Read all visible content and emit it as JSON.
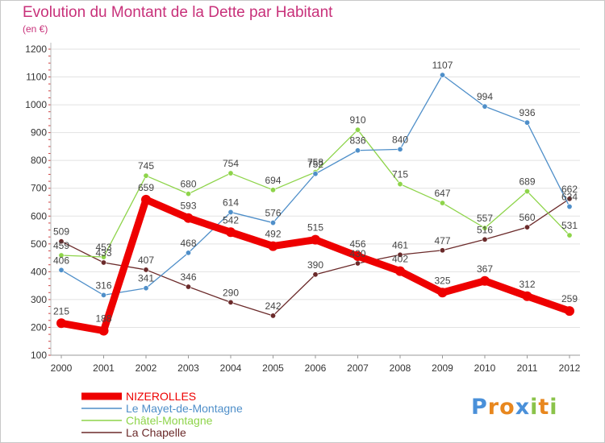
{
  "header": {
    "title": "Evolution du Montant de la Dette par Habitant",
    "subtitle": "(en €)"
  },
  "logo": {
    "text": "Proxiti",
    "letters": [
      {
        "ch": "P",
        "color": "#4a90d9"
      },
      {
        "ch": "r",
        "color": "#e8871e"
      },
      {
        "ch": "o",
        "color": "#e8871e"
      },
      {
        "ch": "x",
        "color": "#4a90d9"
      },
      {
        "ch": "i",
        "color": "#8bc34a"
      },
      {
        "ch": "t",
        "color": "#e8871e"
      },
      {
        "ch": "i",
        "color": "#8bc34a"
      }
    ]
  },
  "chart_data": {
    "type": "line",
    "title": "Evolution du Montant de la Dette par Habitant",
    "subtitle": "(en €)",
    "x": [
      "2000",
      "2001",
      "2002",
      "2003",
      "2004",
      "2005",
      "2006",
      "2007",
      "2008",
      "2009",
      "2010",
      "2011",
      "2012"
    ],
    "ylim": [
      100,
      1200
    ],
    "yticks": [
      100,
      200,
      300,
      400,
      500,
      600,
      700,
      800,
      900,
      1000,
      1100,
      1200
    ],
    "grid": "horizontal",
    "legend_position": "bottom-left",
    "series": [
      {
        "name": "NIZEROLLES",
        "color": "#ee0000",
        "values": [
          215,
          188,
          659,
          593,
          542,
          492,
          515,
          456,
          402,
          325,
          367,
          312,
          259
        ],
        "labels": [
          "215",
          "188",
          "659",
          "593",
          "542",
          "492",
          "515",
          "456",
          "402",
          "325",
          "367",
          "312",
          "259"
        ]
      },
      {
        "name": "Le Mayet-de-Montagne",
        "color": "#4f8fc9",
        "values": [
          406,
          316,
          341,
          468,
          614,
          576,
          752,
          836,
          840,
          1107,
          994,
          936,
          634
        ],
        "labels": [
          "406",
          "316",
          "341",
          "468",
          "614",
          "576",
          "752",
          "836",
          "840",
          "1107",
          "994",
          "936",
          "634"
        ]
      },
      {
        "name": "Châtel-Montagne",
        "color": "#8ed44a",
        "values": [
          459,
          453,
          745,
          680,
          754,
          694,
          758,
          910,
          715,
          647,
          557,
          689,
          531
        ],
        "labels": [
          "459",
          "453",
          "745",
          "680",
          "754",
          "694",
          "758",
          "910",
          "715",
          "647",
          "557",
          "689",
          "531"
        ]
      },
      {
        "name": "La Chapelle",
        "color": "#6b2a2a",
        "values": [
          509,
          433,
          407,
          346,
          290,
          242,
          390,
          430,
          461,
          477,
          516,
          560,
          662
        ],
        "labels": [
          "509",
          "433",
          "407",
          "346",
          "290",
          "242",
          "390",
          "430",
          "461",
          "477",
          "516",
          "560",
          "662"
        ]
      }
    ]
  }
}
